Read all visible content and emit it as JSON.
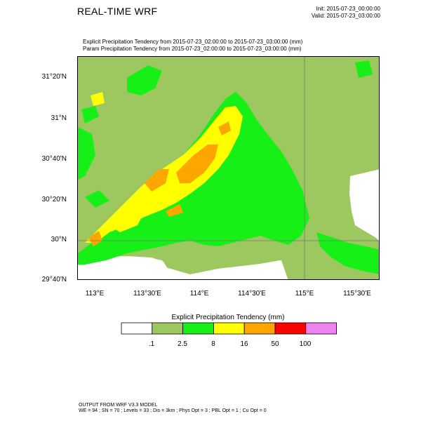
{
  "title": "REAL-TIME WRF",
  "init_time": "Init: 2015-07-23_00:00:00",
  "valid_time": "Valid: 2015-07-23_03:00:00",
  "subtitle_1": "Explicit Precipitation Tendency from 2015-07-23_02:00:00 to 2015-07-23_03:00:00   (mm)",
  "subtitle_2": "Param  Precipitation Tendency from 2015-07-23_02:00:00 to 2015-07-23_03:00:00   (mm)",
  "lat_labels": [
    "31°20'N",
    "31°N",
    "30°40'N",
    "30°20'N",
    "30°N",
    "29°40'N"
  ],
  "lon_labels": [
    "113°E",
    "113°30'E",
    "114°E",
    "114°30'E",
    "115°E",
    "115°30'E"
  ],
  "colorbar": {
    "title": "Explicit Precipitation Tendency  (mm)",
    "levels": [
      ".1",
      "2.5",
      "8",
      "16",
      "50",
      "100"
    ],
    "colors": [
      "#ffffff",
      "#9dc85f",
      "#16f016",
      "#ffff00",
      "#ffa500",
      "#ff0000",
      "#ee82ee"
    ]
  },
  "footer_1": "OUTPUT FROM WRF V3.3 MODEL",
  "footer_2": "WE = 94 ; SN = 70 ; Levels = 33 ; Dis = 3km ; Phys Opt = 3 ; PBL Opt = 1 ; Cu Opt = 0"
}
